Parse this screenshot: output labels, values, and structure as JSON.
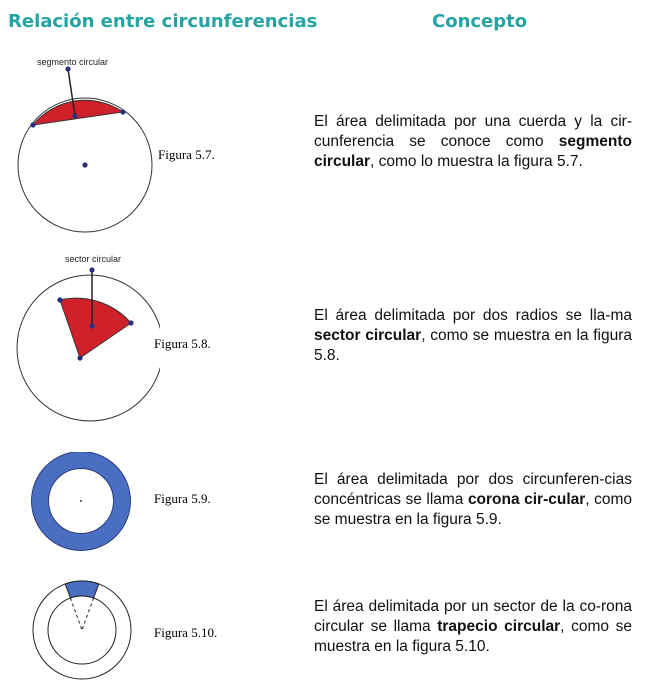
{
  "header": {
    "left": "Relación entre circunferencias",
    "right": "Concepto"
  },
  "colors": {
    "accent": "#26a3a3",
    "red_fill": "#d0202a",
    "blue_fill": "#4a6fc2"
  },
  "rows": [
    {
      "figure_label": "segmento circular",
      "caption": "Figura 5.7.",
      "text_a": "El área delimitada por una cuerda y la cir-cunferencia se conoce como ",
      "bold": "segmento circular",
      "text_b": ", como lo muestra la figura 5.7."
    },
    {
      "figure_label": "sector circular",
      "caption": "Figura 5.8.",
      "text_a": "El área delimitada por dos radios se lla-ma ",
      "bold": "sector circular",
      "text_b": ", como se muestra en la figura 5.8."
    },
    {
      "caption": "Figura 5.9.",
      "text_a": "El área delimitada por dos circunferen-cias concéntricas se llama ",
      "bold": "corona cir-cular",
      "text_b": ", como se muestra en la figura 5.9."
    },
    {
      "caption": "Figura 5.10.",
      "text_a": "El área delimitada por un sector de la co-rona circular se llama ",
      "bold": "trapecio circular",
      "text_b": ", como se muestra en la figura 5.10."
    }
  ]
}
